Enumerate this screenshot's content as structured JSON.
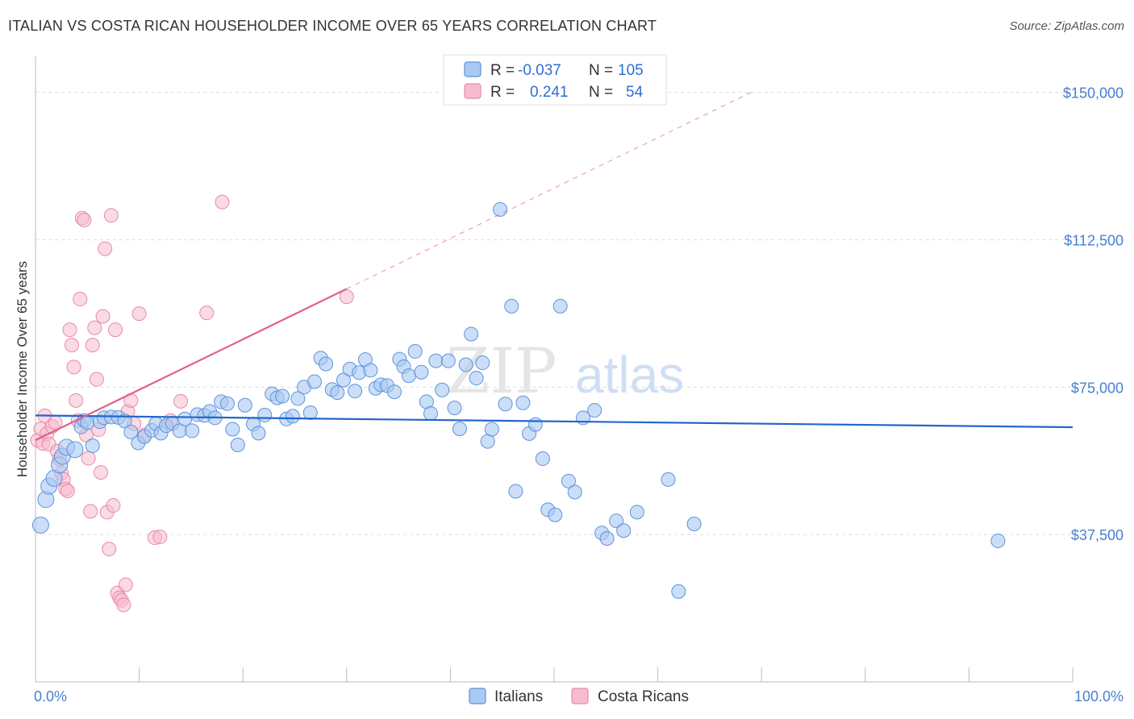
{
  "title": "ITALIAN VS COSTA RICAN HOUSEHOLDER INCOME OVER 65 YEARS CORRELATION CHART",
  "source": "Source: ZipAtlas.com",
  "watermark": {
    "zip": "ZIP",
    "atlas": "atlas"
  },
  "legend": {
    "r_label": "R =",
    "n_label": "N =",
    "rows": [
      {
        "series": "Italians",
        "r": "-0.037",
        "n": "105",
        "color": "#6a9be0"
      },
      {
        "series": "Costa Ricans",
        "r": "0.241",
        "n": "54",
        "color": "#ec8fab"
      }
    ]
  },
  "colors": {
    "italians_fill": "#a9c8f2",
    "italians_stroke": "#5e93dc",
    "italians_line": "#2266cc",
    "costa_fill": "#f6bccd",
    "costa_stroke": "#e98aa8",
    "costa_line": "#e0608c",
    "grid": "#dcdcdc",
    "tick_text": "#4a7fd1"
  },
  "chart_data": {
    "type": "scatter",
    "title": "ITALIAN VS COSTA RICAN HOUSEHOLDER INCOME OVER 65 YEARS CORRELATION CHART",
    "xlabel": "",
    "ylabel": "Householder Income Over 65 years",
    "xlim": [
      0,
      100
    ],
    "ylim": [
      0,
      157500
    ],
    "x_tick_labels": [
      "0.0%",
      "100.0%"
    ],
    "y_ticks": [
      37500,
      75000,
      112500,
      150000
    ],
    "y_tick_labels": [
      "$37,500",
      "$75,000",
      "$112,500",
      "$150,000"
    ],
    "grid": true,
    "legend_position": "top-center",
    "series": [
      {
        "name": "Italians",
        "trend": {
          "x0": 0,
          "y0": 67800,
          "x1": 100,
          "y1": 64800,
          "dashed": false
        },
        "points": [
          [
            0.5,
            39900
          ],
          [
            1.0,
            46400
          ],
          [
            1.3,
            49800
          ],
          [
            1.8,
            51800
          ],
          [
            2.3,
            55200
          ],
          [
            2.6,
            57400
          ],
          [
            3.0,
            59700
          ],
          [
            3.8,
            59100
          ],
          [
            4.4,
            64900
          ],
          [
            4.7,
            66500
          ],
          [
            5.0,
            66000
          ],
          [
            5.5,
            60100
          ],
          [
            6.2,
            66200
          ],
          [
            6.6,
            67200
          ],
          [
            7.3,
            67400
          ],
          [
            8.0,
            67300
          ],
          [
            8.6,
            66400
          ],
          [
            9.2,
            63600
          ],
          [
            9.9,
            60800
          ],
          [
            10.5,
            62400
          ],
          [
            11.2,
            64000
          ],
          [
            11.6,
            65700
          ],
          [
            12.1,
            63300
          ],
          [
            12.6,
            65200
          ],
          [
            13.2,
            65800
          ],
          [
            13.9,
            63900
          ],
          [
            14.4,
            66900
          ],
          [
            15.1,
            63900
          ],
          [
            15.6,
            68000
          ],
          [
            16.3,
            67800
          ],
          [
            16.8,
            68800
          ],
          [
            17.3,
            67200
          ],
          [
            17.9,
            71300
          ],
          [
            18.5,
            70800
          ],
          [
            19.0,
            64300
          ],
          [
            19.5,
            60300
          ],
          [
            20.2,
            70400
          ],
          [
            21.0,
            65600
          ],
          [
            21.5,
            63300
          ],
          [
            22.1,
            67900
          ],
          [
            22.8,
            73300
          ],
          [
            23.3,
            72300
          ],
          [
            23.8,
            72700
          ],
          [
            24.2,
            66900
          ],
          [
            24.8,
            67600
          ],
          [
            25.3,
            72100
          ],
          [
            25.9,
            75000
          ],
          [
            26.5,
            68500
          ],
          [
            26.9,
            76400
          ],
          [
            27.5,
            82400
          ],
          [
            28.0,
            80900
          ],
          [
            28.6,
            74400
          ],
          [
            29.1,
            73600
          ],
          [
            29.7,
            76800
          ],
          [
            30.3,
            79600
          ],
          [
            30.8,
            74000
          ],
          [
            31.2,
            78700
          ],
          [
            31.8,
            82000
          ],
          [
            32.3,
            79300
          ],
          [
            32.8,
            74700
          ],
          [
            33.3,
            75600
          ],
          [
            33.9,
            75400
          ],
          [
            34.6,
            73800
          ],
          [
            35.1,
            82100
          ],
          [
            35.5,
            80200
          ],
          [
            36.0,
            77900
          ],
          [
            36.6,
            84100
          ],
          [
            37.2,
            78800
          ],
          [
            37.7,
            71300
          ],
          [
            38.1,
            68300
          ],
          [
            38.6,
            81700
          ],
          [
            39.2,
            74300
          ],
          [
            39.8,
            81700
          ],
          [
            40.4,
            69700
          ],
          [
            40.9,
            64400
          ],
          [
            41.5,
            80700
          ],
          [
            42.0,
            88500
          ],
          [
            42.5,
            77300
          ],
          [
            43.1,
            81200
          ],
          [
            43.6,
            61200
          ],
          [
            44.0,
            64300
          ],
          [
            44.8,
            120200
          ],
          [
            45.3,
            70700
          ],
          [
            45.9,
            95600
          ],
          [
            46.3,
            48500
          ],
          [
            47.0,
            71000
          ],
          [
            47.6,
            63200
          ],
          [
            48.2,
            65500
          ],
          [
            48.9,
            56800
          ],
          [
            49.4,
            43800
          ],
          [
            50.1,
            42500
          ],
          [
            50.6,
            95600
          ],
          [
            51.4,
            51100
          ],
          [
            52.0,
            48300
          ],
          [
            52.8,
            67200
          ],
          [
            53.9,
            69100
          ],
          [
            54.6,
            37900
          ],
          [
            55.1,
            36500
          ],
          [
            56.0,
            41000
          ],
          [
            56.7,
            38500
          ],
          [
            58.0,
            43200
          ],
          [
            61.0,
            51500
          ],
          [
            62.0,
            23000
          ],
          [
            63.5,
            40200
          ],
          [
            92.8,
            35900
          ]
        ]
      },
      {
        "name": "Costa Ricans",
        "trend": {
          "x0": 0,
          "y0": 61500,
          "x1": 30,
          "y1": 100000,
          "dashed_to_x": 69,
          "dashed_to_y": 150000
        },
        "points": [
          [
            0.2,
            61500
          ],
          [
            0.5,
            64400
          ],
          [
            0.7,
            60700
          ],
          [
            0.9,
            67700
          ],
          [
            1.1,
            63200
          ],
          [
            1.3,
            60500
          ],
          [
            1.6,
            65000
          ],
          [
            1.9,
            66000
          ],
          [
            2.1,
            58700
          ],
          [
            2.3,
            56700
          ],
          [
            2.5,
            53100
          ],
          [
            2.7,
            51500
          ],
          [
            2.9,
            49100
          ],
          [
            3.1,
            48600
          ],
          [
            3.3,
            89600
          ],
          [
            3.5,
            85700
          ],
          [
            3.7,
            80100
          ],
          [
            3.9,
            71600
          ],
          [
            4.1,
            66500
          ],
          [
            4.3,
            97400
          ],
          [
            4.5,
            118000
          ],
          [
            4.7,
            117500
          ],
          [
            4.9,
            62800
          ],
          [
            5.1,
            56900
          ],
          [
            5.3,
            43400
          ],
          [
            5.5,
            85700
          ],
          [
            5.7,
            90100
          ],
          [
            5.9,
            77000
          ],
          [
            6.1,
            64200
          ],
          [
            6.3,
            53300
          ],
          [
            6.5,
            93000
          ],
          [
            6.7,
            110200
          ],
          [
            6.9,
            43200
          ],
          [
            7.1,
            33800
          ],
          [
            7.3,
            118700
          ],
          [
            7.5,
            44900
          ],
          [
            7.7,
            89600
          ],
          [
            7.9,
            22600
          ],
          [
            8.1,
            21400
          ],
          [
            8.3,
            20800
          ],
          [
            8.5,
            19600
          ],
          [
            8.7,
            24700
          ],
          [
            8.9,
            68800
          ],
          [
            9.2,
            71600
          ],
          [
            9.5,
            65700
          ],
          [
            10.0,
            93700
          ],
          [
            10.5,
            62800
          ],
          [
            11.5,
            36700
          ],
          [
            12.0,
            36900
          ],
          [
            13.0,
            66500
          ],
          [
            14.0,
            71400
          ],
          [
            16.5,
            93900
          ],
          [
            18.0,
            122100
          ],
          [
            30.0,
            98000
          ]
        ]
      }
    ]
  }
}
